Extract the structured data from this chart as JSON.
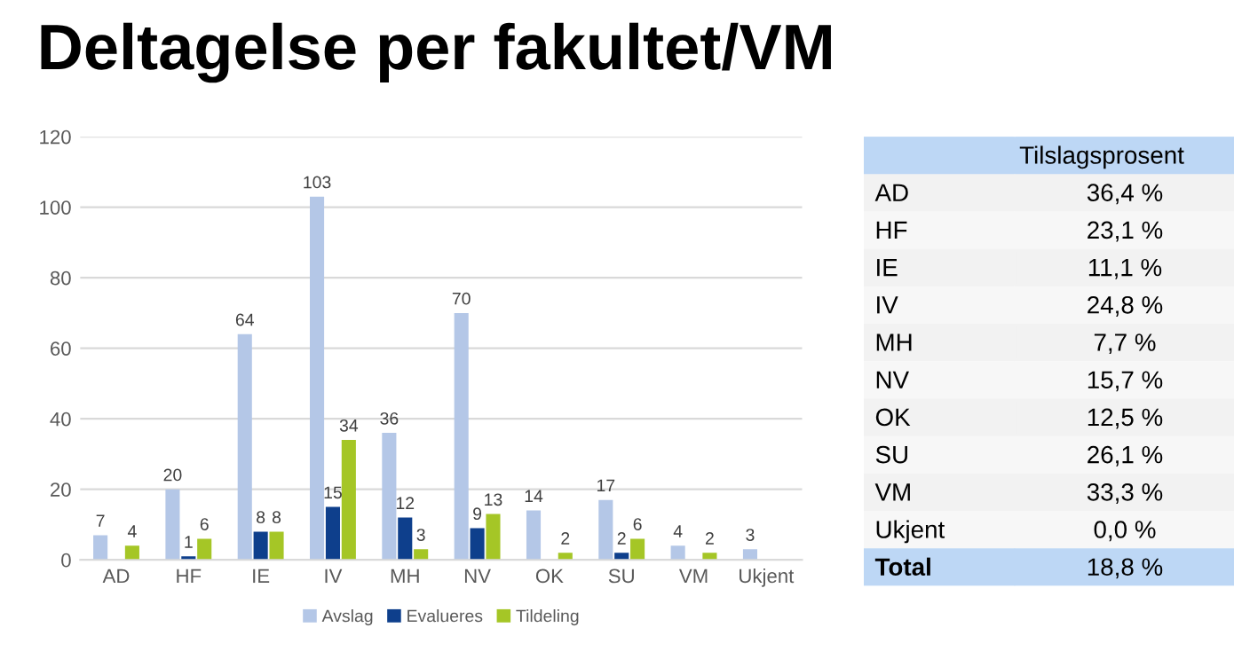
{
  "chart_data": [
    {
      "type": "bar",
      "title": "Deltagelse per fakultet/VM",
      "categories": [
        "AD",
        "HF",
        "IE",
        "IV",
        "MH",
        "NV",
        "OK",
        "SU",
        "VM",
        "Ukjent"
      ],
      "series": [
        {
          "name": "Avslag",
          "color": "#b4c7e7",
          "values": [
            7,
            20,
            64,
            103,
            36,
            70,
            14,
            17,
            4,
            3
          ]
        },
        {
          "name": "Evalueres",
          "color": "#0e3f8c",
          "values": [
            null,
            1,
            8,
            15,
            12,
            9,
            null,
            2,
            null,
            null
          ]
        },
        {
          "name": "Tildeling",
          "color": "#a5c626",
          "values": [
            4,
            6,
            8,
            34,
            3,
            13,
            2,
            6,
            2,
            null
          ]
        }
      ],
      "ylim": [
        0,
        120
      ],
      "yticks": [
        0,
        20,
        40,
        60,
        80,
        100,
        120
      ],
      "grid": "y",
      "legend": "bottom",
      "data_labels": true
    },
    {
      "type": "other",
      "title": "Tilslagsprosent",
      "categories": [
        "AD",
        "HF",
        "IE",
        "IV",
        "MH",
        "NV",
        "OK",
        "SU",
        "VM",
        "Ukjent",
        "Total"
      ],
      "values": [
        36.4,
        23.1,
        11.1,
        24.8,
        7.7,
        15.7,
        12.5,
        26.1,
        33.3,
        0.0,
        18.8
      ],
      "value_labels": [
        "36,4 %",
        "23,1 %",
        "11,1 %",
        "24,8 %",
        "7,7 %",
        "15,7 %",
        "12,5 %",
        "26,1 %",
        "33,3 %",
        "0,0 %",
        "18,8 %"
      ]
    }
  ]
}
